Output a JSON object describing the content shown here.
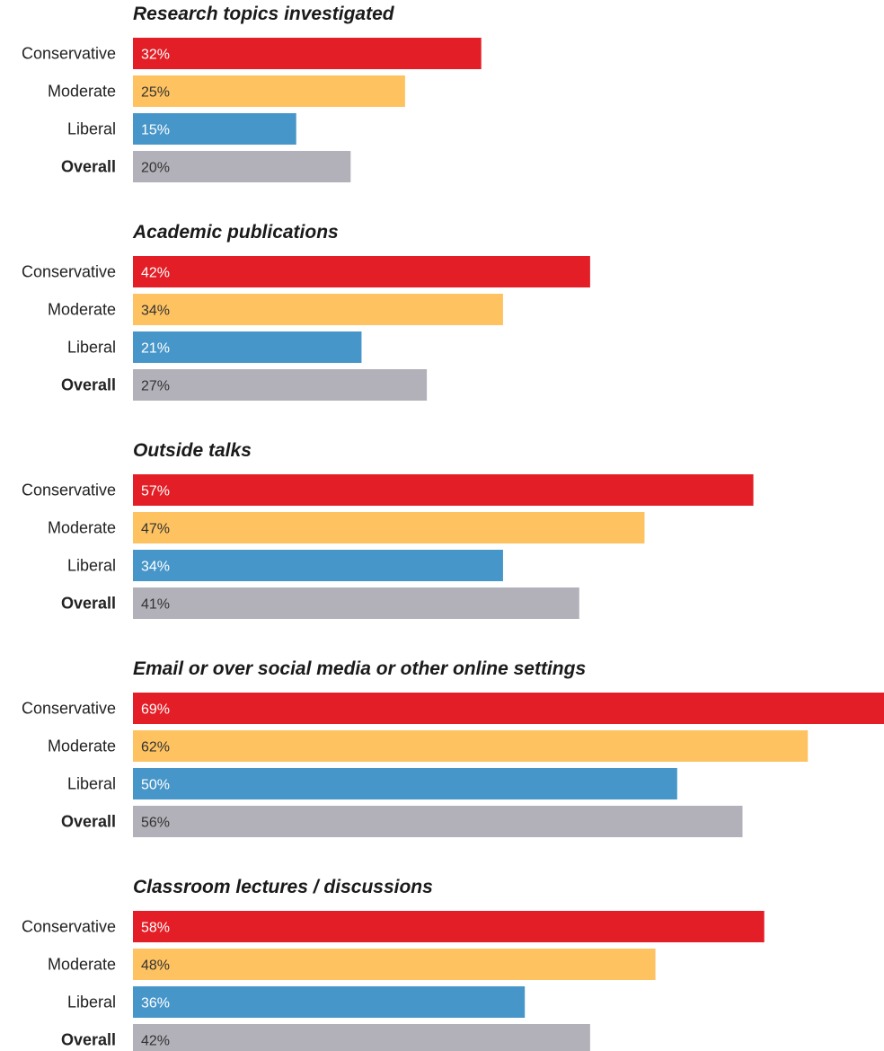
{
  "chart_data": {
    "type": "bar",
    "orientation": "horizontal",
    "value_format": "percent",
    "xlim": [
      0,
      69
    ],
    "series_colors": {
      "Conservative": "#e31e26",
      "Moderate": "#fec261",
      "Liberal": "#4796c9",
      "Overall": "#b2b1b9"
    },
    "value_text_colors": {
      "Conservative": "#ffffff",
      "Moderate": "#333333",
      "Liberal": "#ffffff",
      "Overall": "#333333"
    },
    "bold_categories": [
      "Overall"
    ],
    "categories": [
      "Conservative",
      "Moderate",
      "Liberal",
      "Overall"
    ],
    "panels": [
      {
        "title": "Research topics investigated",
        "values": [
          32,
          25,
          15,
          20
        ]
      },
      {
        "title": "Academic publications",
        "values": [
          42,
          34,
          21,
          27
        ]
      },
      {
        "title": "Outside talks",
        "values": [
          57,
          47,
          34,
          41
        ]
      },
      {
        "title": "Email or over social media or other online settings",
        "values": [
          69,
          62,
          50,
          56
        ]
      },
      {
        "title": "Classroom lectures / discussions",
        "values": [
          58,
          48,
          36,
          42
        ]
      }
    ]
  }
}
